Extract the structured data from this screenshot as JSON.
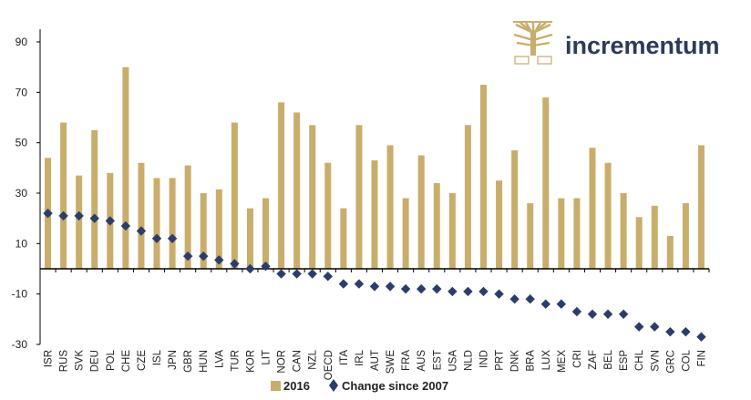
{
  "brand": {
    "name": "incrementum"
  },
  "colors": {
    "bar": "#c9ad6a",
    "marker": "#2c3d6b",
    "axis": "#000000",
    "logo_gold": "#c9ad6a",
    "logo_text": "#2c3a5c"
  },
  "chart_data": {
    "type": "bar",
    "title": "",
    "xlabel": "",
    "ylabel": "",
    "ylim": [
      -30,
      95
    ],
    "yticks": [
      90,
      70,
      50,
      30,
      10,
      -10,
      -30
    ],
    "grid": false,
    "legend": {
      "placement": "bottom-center",
      "entries": [
        "2016",
        "Change since 2007"
      ]
    },
    "categories": [
      "ISR",
      "RUS",
      "SVK",
      "DEU",
      "POL",
      "CHE",
      "CZE",
      "ISL",
      "JPN",
      "GBR",
      "HUN",
      "LVA",
      "TUR",
      "KOR",
      "LIT",
      "NOR",
      "CAN",
      "NZL",
      "OECD",
      "ITA",
      "IRL",
      "AUT",
      "SWE",
      "FRA",
      "AUS",
      "EST",
      "USA",
      "NLD",
      "IND",
      "PRT",
      "DNK",
      "BRA",
      "LUX",
      "MEX",
      "CRI",
      "ZAF",
      "BEL",
      "ESP",
      "CHL",
      "SVN",
      "GRC",
      "COL",
      "FIN"
    ],
    "series": [
      {
        "name": "2016",
        "type": "bar",
        "values": [
          44,
          58,
          37,
          55,
          38,
          80,
          42,
          36,
          36,
          41,
          30,
          31.5,
          58,
          24,
          28,
          66,
          62,
          57,
          42,
          24,
          57,
          43,
          49,
          28,
          45,
          34,
          30,
          57,
          73,
          35,
          47,
          26,
          68,
          28,
          28,
          48,
          42,
          30,
          20.5,
          25,
          13,
          26,
          49
        ]
      },
      {
        "name": "Change since 2007",
        "type": "scatter",
        "values": [
          22,
          21,
          21,
          20,
          19,
          17,
          15,
          12,
          12,
          5,
          5,
          3.5,
          2,
          0,
          1,
          -2,
          -2,
          -2,
          -3,
          -6,
          -6,
          -7,
          -7,
          -8,
          -8,
          -8,
          -9,
          -9,
          -9,
          -10,
          -12,
          -12,
          -14,
          -14,
          -17,
          -18,
          -18,
          -18,
          -23,
          -23,
          -25,
          -25,
          -27
        ]
      }
    ]
  }
}
